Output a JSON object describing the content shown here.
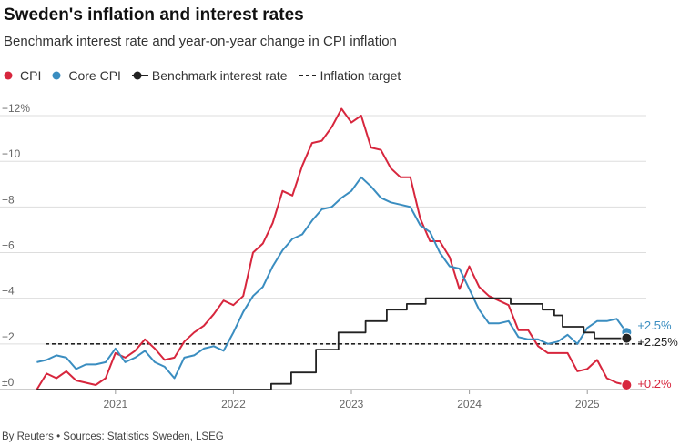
{
  "title": "Sweden's inflation and interest rates",
  "subtitle": "Benchmark interest rate and year-on-year change in CPI inflation",
  "footer": "By Reuters • Sources: Statistics Sweden, LSEG",
  "legend": {
    "cpi": "CPI",
    "core": "Core CPI",
    "rate": "Benchmark interest rate",
    "target": "Inflation target"
  },
  "colors": {
    "cpi": "#d7263d",
    "core": "#3a8dc0",
    "rate": "#222222",
    "target": "#222222",
    "grid": "#dddddd"
  },
  "chart_data": {
    "type": "line",
    "title": "Sweden's inflation and interest rates",
    "xlabel": "",
    "ylabel": "",
    "ylim": [
      0,
      12.4
    ],
    "xlim": [
      2020.33,
      2025.5
    ],
    "y_ticks": [
      {
        "value": 0,
        "label": "±0"
      },
      {
        "value": 2,
        "label": "+2"
      },
      {
        "value": 4,
        "label": "+4"
      },
      {
        "value": 6,
        "label": "+6"
      },
      {
        "value": 8,
        "label": "+8"
      },
      {
        "value": 10,
        "label": "+10"
      },
      {
        "value": 12,
        "label": "+12%"
      }
    ],
    "x_ticks": [
      {
        "value": 2021,
        "label": "2021"
      },
      {
        "value": 2022,
        "label": "2022"
      },
      {
        "value": 2023,
        "label": "2023"
      },
      {
        "value": 2024,
        "label": "2024"
      },
      {
        "value": 2025,
        "label": "2025"
      }
    ],
    "target": 2.0,
    "series": [
      {
        "name": "CPI",
        "key": "cpi",
        "start": 2020.333,
        "step": 0.08333,
        "values": [
          0.0,
          0.7,
          0.5,
          0.8,
          0.4,
          0.3,
          0.2,
          0.5,
          1.6,
          1.4,
          1.7,
          2.2,
          1.8,
          1.3,
          1.4,
          2.1,
          2.5,
          2.8,
          3.3,
          3.9,
          3.7,
          4.1,
          6.0,
          6.4,
          7.3,
          8.7,
          8.5,
          9.8,
          10.8,
          10.9,
          11.5,
          12.3,
          11.7,
          12.0,
          10.6,
          10.5,
          9.7,
          9.3,
          9.3,
          7.5,
          6.5,
          6.5,
          5.8,
          4.4,
          5.4,
          4.5,
          4.1,
          3.9,
          3.7,
          2.6,
          2.6,
          1.9,
          1.6,
          1.6,
          1.6,
          0.8,
          0.9,
          1.3,
          0.5,
          0.3,
          0.2
        ]
      },
      {
        "name": "Core CPI",
        "key": "core",
        "start": 2020.333,
        "step": 0.08333,
        "values": [
          1.2,
          1.3,
          1.5,
          1.4,
          0.9,
          1.1,
          1.1,
          1.2,
          1.8,
          1.2,
          1.4,
          1.7,
          1.2,
          1.0,
          0.5,
          1.4,
          1.5,
          1.8,
          1.9,
          1.7,
          2.5,
          3.4,
          4.1,
          4.5,
          5.4,
          6.1,
          6.6,
          6.8,
          7.4,
          7.9,
          8.0,
          8.4,
          8.7,
          9.3,
          8.9,
          8.4,
          8.2,
          8.1,
          8.0,
          7.2,
          6.9,
          6.0,
          5.4,
          5.3,
          4.4,
          3.5,
          2.9,
          2.9,
          3.0,
          2.3,
          2.2,
          2.2,
          2.0,
          2.1,
          2.4,
          2.0,
          2.7,
          3.0,
          3.0,
          3.1,
          2.5
        ]
      },
      {
        "name": "Benchmark interest rate",
        "key": "rate",
        "type": "step",
        "points": [
          [
            2020.333,
            0
          ],
          [
            2022.32,
            0.25
          ],
          [
            2022.49,
            0.75
          ],
          [
            2022.7,
            1.75
          ],
          [
            2022.89,
            2.5
          ],
          [
            2023.12,
            3.0
          ],
          [
            2023.3,
            3.5
          ],
          [
            2023.47,
            3.75
          ],
          [
            2023.63,
            4.0
          ],
          [
            2024.35,
            3.75
          ],
          [
            2024.62,
            3.5
          ],
          [
            2024.72,
            3.25
          ],
          [
            2024.79,
            2.75
          ],
          [
            2024.97,
            2.5
          ],
          [
            2025.06,
            2.25
          ],
          [
            2025.333,
            2.25
          ]
        ]
      }
    ],
    "end_labels": [
      {
        "key": "core",
        "label": "+2.5%",
        "value": 2.5
      },
      {
        "key": "rate",
        "label": "+2.25%",
        "value": 2.25
      },
      {
        "key": "cpi",
        "label": "+0.2%",
        "value": 0.2
      }
    ]
  }
}
